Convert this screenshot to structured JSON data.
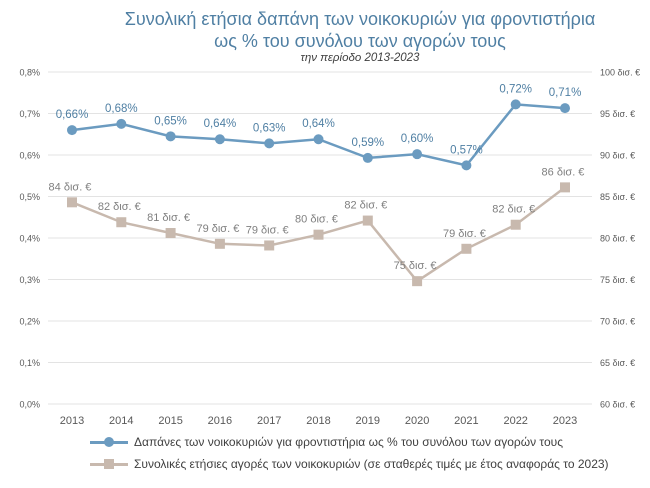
{
  "title": {
    "line1": "Συνολική ετήσια δαπάνη των νοικοκυριών για φροντιστήρια",
    "line2": "ως % του συνόλου των αγορών τους",
    "subtitle": "την περίοδο 2013-2023"
  },
  "colors": {
    "series1": "#6b9bc0",
    "series2": "#c8b9ae",
    "grid": "#e3e3e3",
    "axis_text": "#595959",
    "label1": "#4f7fa3",
    "label2": "#7f7f7f"
  },
  "chart_data": {
    "type": "line",
    "title": "Συνολική ετήσια δαπάνη των νοικοκυριών για φροντιστήρια ως % του συνόλου των αγορών τους",
    "subtitle": "την περίοδο 2013-2023",
    "x": [
      "2013",
      "2014",
      "2015",
      "2016",
      "2017",
      "2018",
      "2019",
      "2020",
      "2021",
      "2022",
      "2023"
    ],
    "left_axis": {
      "range": [
        0,
        0.8
      ],
      "ticks": [
        "0,0%",
        "0,1%",
        "0,2%",
        "0,3%",
        "0,4%",
        "0,5%",
        "0,6%",
        "0,7%",
        "0,8%"
      ]
    },
    "right_axis": {
      "range": [
        60,
        100
      ],
      "ticks": [
        "60 δισ. €",
        "65 δισ. €",
        "70 δισ. €",
        "75 δισ. €",
        "80 δισ. €",
        "85 δισ. €",
        "90 δισ. €",
        "95 δισ. €",
        "100 δισ. €"
      ]
    },
    "grid": true,
    "legend_position": "bottom",
    "series": [
      {
        "name": "Δαπάνες των νοικοκυριών για φροντιστήρια ως % του συνόλου των αγορών τους",
        "axis": "left",
        "marker": "circle",
        "values": [
          0.66,
          0.675,
          0.645,
          0.638,
          0.628,
          0.638,
          0.593,
          0.602,
          0.575,
          0.722,
          0.713
        ],
        "labels": [
          "0,66%",
          "0,68%",
          "0,65%",
          "0,64%",
          "0,63%",
          "0,64%",
          "0,59%",
          "0,60%",
          "0,57%",
          "0,72%",
          "0,71%"
        ]
      },
      {
        "name": "Συνολικές ετήσιες αγορές των νοικοκυριών (σε σταθερές τιμές με έτος αναφοράς το 2023)",
        "axis": "right",
        "marker": "square",
        "values": [
          84.3,
          81.9,
          80.6,
          79.3,
          79.1,
          80.4,
          82.1,
          74.8,
          78.7,
          81.6,
          86.1
        ],
        "labels": [
          "84 δισ. €",
          "82 δισ. €",
          "81 δισ. €",
          "79 δισ. €",
          "79 δισ. €",
          "80 δισ. €",
          "82 δισ. €",
          "75 δισ. €",
          "79 δισ. €",
          "82 δισ. €",
          "86 δισ. €"
        ]
      }
    ]
  }
}
